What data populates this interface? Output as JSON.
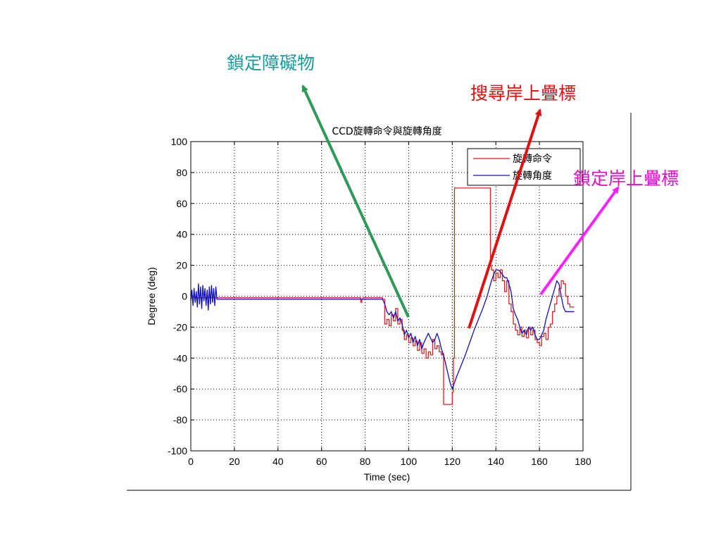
{
  "annotations": {
    "lock_obstacle": {
      "text": "鎖定障礙物",
      "color": "#1a9a9a",
      "arrow_color": "#2e9a5a"
    },
    "search_marker": {
      "text": "搜尋岸上疊標",
      "color": "#e01010",
      "arrow_color": "#e01010"
    },
    "lock_marker": {
      "text": "鎖定岸上疊標",
      "color": "#e010c8",
      "arrow_color": "#ff20ff"
    }
  },
  "chart_data": {
    "type": "line",
    "title": "CCD旋轉命令與旋轉角度",
    "xlabel": "Time (sec)",
    "ylabel": "Degree (deg)",
    "xlim": [
      0,
      180
    ],
    "ylim": [
      -100,
      100
    ],
    "xticks": [
      0,
      20,
      40,
      60,
      80,
      100,
      120,
      140,
      160,
      180
    ],
    "yticks": [
      100,
      80,
      60,
      40,
      20,
      0,
      -20,
      -40,
      -60,
      -80,
      -100
    ],
    "grid": true,
    "legend_position": "top-right",
    "series": [
      {
        "name": "旋轉命令",
        "color": "#e02020",
        "x": [
          0,
          77.5,
          78,
          78.5,
          79,
          86,
          88,
          89,
          90,
          91,
          92,
          93,
          94,
          95,
          96,
          97,
          98,
          99,
          100,
          101,
          102,
          103,
          104,
          105,
          106,
          107,
          108,
          109,
          110,
          111,
          112,
          113,
          114,
          115,
          115.5,
          116,
          119,
          120,
          120.5,
          121,
          137,
          137.5,
          138,
          139,
          140,
          141,
          142,
          143,
          144,
          145,
          146,
          147,
          148,
          149,
          150,
          151,
          152,
          153,
          154,
          155,
          156,
          157,
          158,
          159,
          160,
          161,
          162,
          163,
          164,
          165,
          166,
          167,
          168,
          169,
          170,
          171,
          172,
          173,
          174,
          175,
          176
        ],
        "y": [
          -1,
          -1,
          -4,
          -2,
          -1,
          -1,
          -2,
          -18,
          -15,
          -19,
          -12,
          -16,
          -8,
          -18,
          -15,
          -22,
          -28,
          -25,
          -30,
          -27,
          -32,
          -29,
          -35,
          -30,
          -37,
          -34,
          -40,
          -36,
          -38,
          -28,
          -34,
          -32,
          -36,
          -38,
          -37,
          -70,
          -70,
          -62,
          -40,
          70,
          70,
          20,
          17,
          10,
          15,
          12,
          17,
          10,
          3,
          10,
          -5,
          -10,
          -18,
          -22,
          -25,
          -20,
          -26,
          -22,
          -27,
          -20,
          -25,
          -22,
          -28,
          -30,
          -32,
          -26,
          -24,
          -28,
          -20,
          -18,
          -10,
          -5,
          0,
          5,
          10,
          8,
          0,
          -5,
          -7,
          -7,
          -7
        ],
        "step": true
      },
      {
        "name": "旋轉角度",
        "color": "#1010c0",
        "x": [
          0,
          0.5,
          1,
          1.5,
          2,
          2.5,
          3,
          3.5,
          4,
          4.5,
          5,
          5.5,
          6,
          6.5,
          7,
          7.5,
          8,
          8.5,
          9,
          9.5,
          10,
          10.5,
          11,
          11.5,
          12,
          13,
          20,
          40,
          60,
          75,
          80,
          85,
          88,
          89,
          90,
          91,
          92,
          93,
          94,
          95,
          96,
          97,
          98,
          99,
          100,
          101,
          102,
          103,
          104,
          105,
          106,
          107,
          108,
          109,
          110,
          111,
          112,
          113,
          114,
          115,
          116,
          117,
          118,
          119,
          120,
          122,
          124,
          126,
          128,
          130,
          132,
          134,
          136,
          137,
          138,
          139,
          140,
          141,
          142,
          143,
          144,
          145,
          146,
          147,
          148,
          149,
          150,
          151,
          152,
          153,
          154,
          155,
          156,
          157,
          158,
          159,
          160,
          161,
          162,
          163,
          164,
          165,
          166,
          167,
          168,
          169,
          170,
          171,
          172,
          173,
          174,
          175,
          176
        ],
        "y": [
          -3,
          4,
          -6,
          5,
          -4,
          3,
          -7,
          8,
          -5,
          6,
          -8,
          7,
          -3,
          5,
          -6,
          4,
          -9,
          6,
          -5,
          7,
          -4,
          5,
          -6,
          6,
          -2,
          -2,
          -2,
          -2,
          -2,
          -2,
          -2,
          -2,
          -2,
          -5,
          -10,
          -12,
          -10,
          -14,
          -10,
          -16,
          -14,
          -18,
          -25,
          -22,
          -27,
          -24,
          -30,
          -26,
          -32,
          -28,
          -34,
          -30,
          -27,
          -24,
          -27,
          -30,
          -28,
          -24,
          -28,
          -34,
          -38,
          -44,
          -50,
          -56,
          -60,
          -52,
          -45,
          -38,
          -30,
          -22,
          -15,
          -8,
          0,
          5,
          10,
          14,
          17,
          17,
          16,
          14,
          12,
          12,
          8,
          3,
          -8,
          -12,
          -15,
          -20,
          -24,
          -22,
          -25,
          -20,
          -22,
          -20,
          -25,
          -28,
          -28,
          -25,
          -22,
          -15,
          -10,
          -5,
          0,
          5,
          10,
          8,
          0,
          -7,
          -10,
          -10,
          -10,
          -10,
          -10
        ],
        "step": false
      }
    ]
  }
}
